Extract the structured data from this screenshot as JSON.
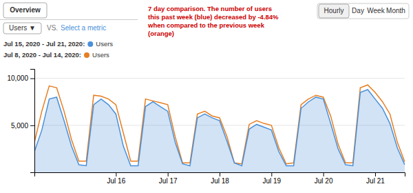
{
  "chart_data": {
    "type": "area",
    "title": "7 day comparison. The number of users\nthis past week (blue) decreased by -4.84%\nwhen compared to the previous week\n(orange)",
    "annotations": [
      "Overview",
      "Hourly",
      "Day",
      "Week",
      "Month",
      "Users  ▼",
      "VS.",
      "Select a metric",
      "Users"
    ],
    "categories": [
      null,
      null,
      null,
      null,
      null,
      null,
      null,
      null,
      null,
      null,
      null,
      "Jul 16",
      null,
      null,
      null,
      null,
      null,
      null,
      "Jul 17",
      null,
      null,
      null,
      null,
      null,
      null,
      "Jul 18",
      null,
      null,
      null,
      null,
      null,
      null,
      "Jul 19",
      null,
      null,
      null,
      null,
      null,
      null,
      "Jul 20",
      null,
      null,
      null,
      null,
      null,
      null,
      "Jul 21",
      null,
      null,
      null,
      null
    ],
    "series": [
      {
        "name": "Jul 15, 2020 - Jul 21, 2020:",
        "type": "area",
        "color": "#4a90d9",
        "values": [
          2200,
          4500,
          7800,
          8000,
          5500,
          2800,
          800,
          700,
          7200,
          7800,
          7200,
          6200,
          2800,
          700,
          700,
          7000,
          7500,
          7000,
          6500,
          3200,
          900,
          700,
          5800,
          6200,
          5800,
          5500,
          3300,
          1000,
          700,
          4600,
          5100,
          4800,
          4500,
          2200,
          700,
          700,
          6800,
          7500,
          8000,
          7800,
          5200,
          2500,
          800,
          700,
          8500,
          8800,
          7800,
          6800,
          5200,
          2600,
          800
        ]
      },
      {
        "name": "Jul 8, 2020 - Jul 14, 2020:",
        "type": "line",
        "color": "#e67e22",
        "values": [
          3200,
          6500,
          9200,
          9000,
          6500,
          3500,
          1200,
          1200,
          8200,
          8100,
          7800,
          7200,
          4200,
          1200,
          1200,
          7800,
          7600,
          7400,
          7200,
          3800,
          1000,
          1000,
          6200,
          6500,
          6000,
          5800,
          3800,
          1000,
          900,
          5100,
          5500,
          5200,
          5000,
          2600,
          900,
          1000,
          7200,
          7800,
          8200,
          8000,
          6000,
          3000,
          1000,
          1000,
          9000,
          9300,
          8500,
          7500,
          6200,
          3200,
          1100
        ]
      }
    ],
    "ylim": [
      0,
      11000
    ],
    "yticks": [
      {
        "value": 5000,
        "label": "5,000"
      },
      {
        "value": 10000,
        "label": "10,000"
      }
    ],
    "grid": true,
    "legend": "upper left"
  }
}
